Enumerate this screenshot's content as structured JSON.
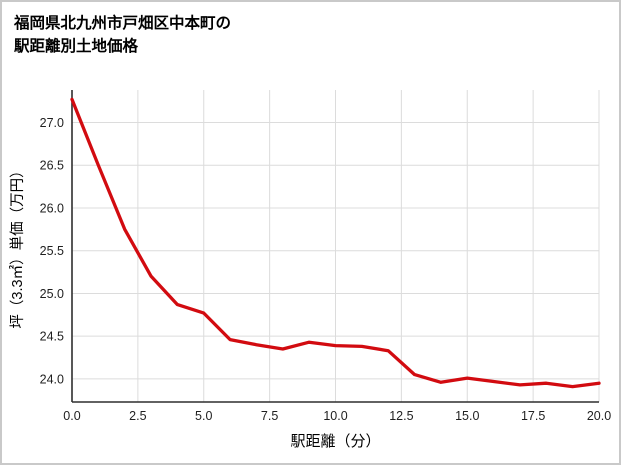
{
  "page": {
    "background": "#ffffff",
    "border_color": "#c9c9c9"
  },
  "chart_data": {
    "type": "line",
    "title": "福岡県北九州市戸畑区中本町の駅距離別土地価格",
    "title_lines": [
      "福岡県北九州市戸畑区中本町の",
      "駅距離別土地価格"
    ],
    "xlabel": "駅距離（分）",
    "ylabel": "坪（3.3㎡）単価（万円）",
    "x": [
      0,
      1,
      2,
      3,
      4,
      5,
      6,
      7,
      8,
      9,
      10,
      11,
      12,
      13,
      14,
      15,
      16,
      17,
      18,
      19,
      20
    ],
    "y": [
      27.27,
      26.5,
      25.75,
      25.2,
      24.87,
      24.77,
      24.46,
      24.4,
      24.35,
      24.43,
      24.39,
      24.38,
      24.33,
      24.05,
      23.96,
      24.01,
      23.97,
      23.93,
      23.95,
      23.91,
      23.95
    ],
    "xticks": [
      0.0,
      2.5,
      5.0,
      7.5,
      10.0,
      12.5,
      15.0,
      17.5,
      20.0
    ],
    "yticks": [
      24.0,
      24.5,
      25.0,
      25.5,
      26.0,
      26.5,
      27.0
    ],
    "xlim": [
      0,
      20
    ],
    "ylim": [
      23.73,
      27.38
    ],
    "grid": true,
    "legend": "none",
    "line_color": "#d20b10",
    "grid_color": "#dcdcdc",
    "axis_color": "#2e2e2e",
    "tick_color": "#1f1f1f"
  }
}
